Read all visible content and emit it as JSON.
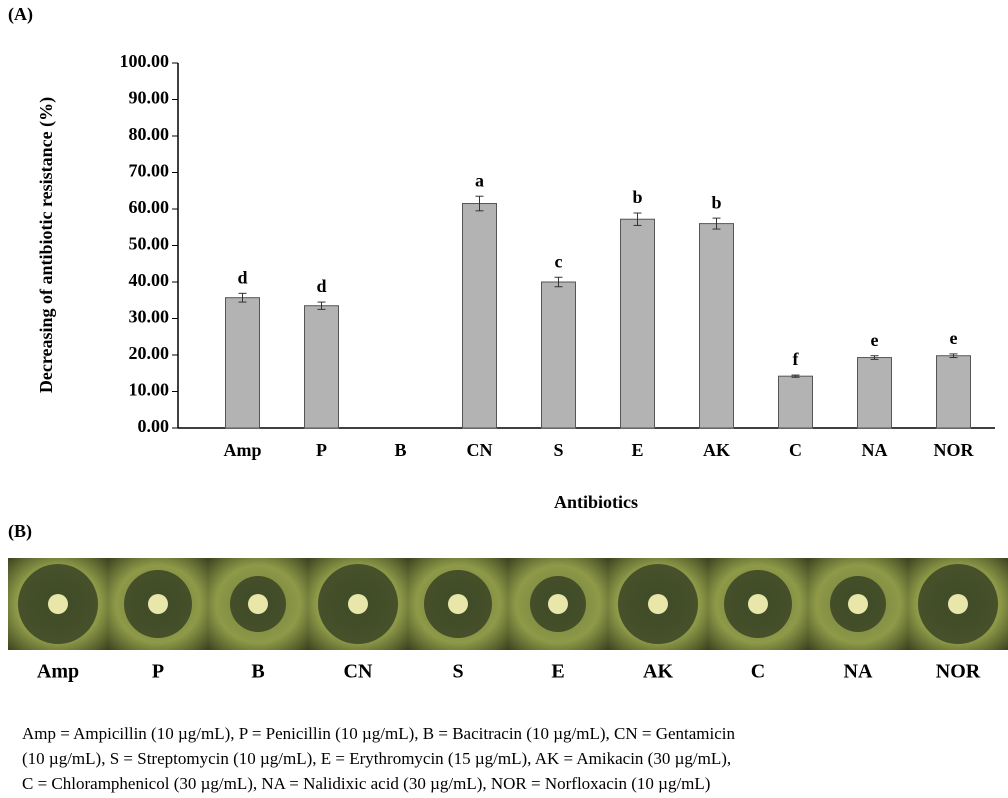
{
  "panel_a_label": "(A)",
  "panel_b_label": "(B)",
  "chart_data": {
    "type": "bar",
    "y_label": "Decreasing of antibiotic resistance (%)",
    "x_label": "Antibiotics",
    "categories": [
      "Amp",
      "P",
      "B",
      "CN",
      "S",
      "E",
      "AK",
      "C",
      "NA",
      "NOR"
    ],
    "values": [
      35.7,
      33.5,
      0,
      61.5,
      40.0,
      57.2,
      56.0,
      14.2,
      19.3,
      19.8
    ],
    "errors": [
      1.2,
      1.0,
      0,
      2.0,
      1.3,
      1.7,
      1.5,
      0.3,
      0.5,
      0.5
    ],
    "value_labels": [
      "d",
      "d",
      null,
      "a",
      "c",
      "b",
      "b",
      "f",
      "e",
      "e"
    ],
    "color": "#b3b3b3",
    "ylim": [
      0,
      100
    ],
    "yticks": [
      {
        "value": 0,
        "label": "0.00"
      },
      {
        "value": 10,
        "label": "10.00"
      },
      {
        "value": 20,
        "label": "20.00"
      },
      {
        "value": 30,
        "label": "30.00"
      },
      {
        "value": 40,
        "label": "40.00"
      },
      {
        "value": 50,
        "label": "50.00"
      },
      {
        "value": 60,
        "label": "60.00"
      },
      {
        "value": 70,
        "label": "70.00"
      },
      {
        "value": 80,
        "label": "80.00"
      },
      {
        "value": 90,
        "label": "90.00"
      },
      {
        "value": 100,
        "label": "100.00"
      }
    ]
  },
  "panel_b": {
    "labels": [
      "Amp",
      "P",
      "B",
      "CN",
      "S",
      "E",
      "AK",
      "C",
      "NA",
      "NOR"
    ]
  },
  "footnote": [
    "Amp = Ampicillin (10 µg/mL), P = Penicillin (10 µg/mL), B = Bacitracin (10 µg/mL), CN = Gentamicin",
    "(10 µg/mL), S = Streptomycin (10 µg/mL), E = Erythromycin (15 µg/mL), AK =  Amikacin (30 µg/mL),",
    "C = Chloramphenicol (30 µg/mL), NA = Nalidixic acid (30 µg/mL), NOR = Norfloxacin (10 µg/mL)"
  ]
}
